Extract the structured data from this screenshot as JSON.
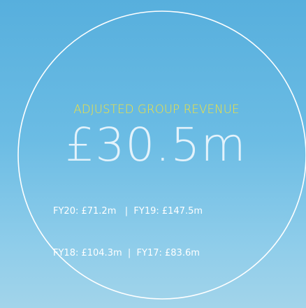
{
  "title": "ADJUSTED GROUP REVENUE",
  "value": "£30.5m",
  "history": [
    "FY20: £71.2m   |  FY19: £147.5m",
    "FY18: £104.3m  |  FY17: £83.6m"
  ]
}
